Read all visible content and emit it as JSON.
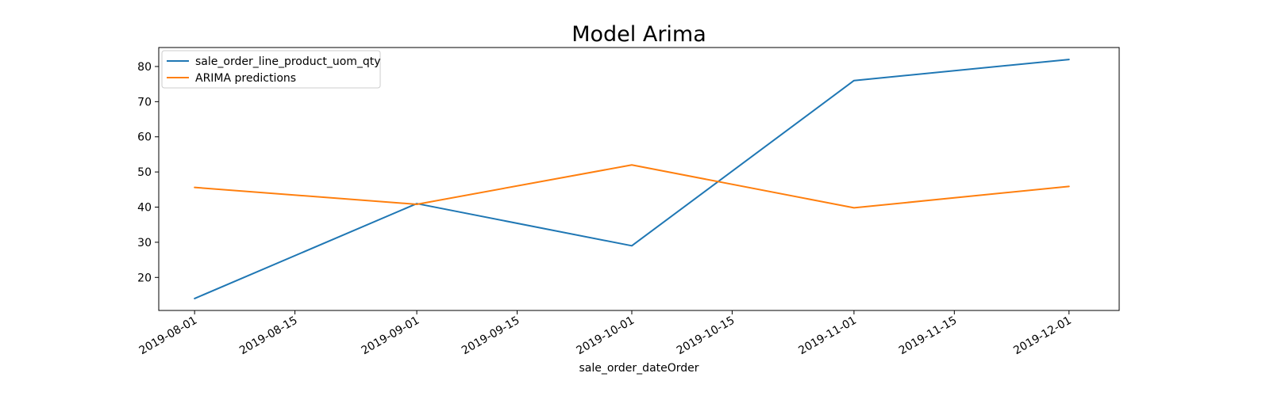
{
  "chart_data": {
    "type": "line",
    "title": "Model Arima",
    "xlabel": "sale_order_dateOrder",
    "ylabel": "",
    "x": [
      "2019-08-01",
      "2019-09-01",
      "2019-10-01",
      "2019-11-01",
      "2019-12-01"
    ],
    "series": [
      {
        "name": "sale_order_line_product_uom_qty",
        "color": "#1f77b4",
        "values": [
          14,
          41,
          29,
          76,
          82
        ]
      },
      {
        "name": "ARIMA predictions",
        "color": "#ff7f0e",
        "values": [
          45.6,
          40.8,
          52,
          39.8,
          45.9
        ]
      }
    ],
    "xlim": [
      "2019-07-27",
      "2019-12-08"
    ],
    "ylim": [
      10.6,
      85.4
    ],
    "xticks": [
      "2019-08-01",
      "2019-08-15",
      "2019-09-01",
      "2019-09-15",
      "2019-10-01",
      "2019-10-15",
      "2019-11-01",
      "2019-11-15",
      "2019-12-01"
    ],
    "yticks": [
      20,
      30,
      40,
      50,
      60,
      70,
      80
    ],
    "grid": false,
    "legend_position": "top-left"
  }
}
